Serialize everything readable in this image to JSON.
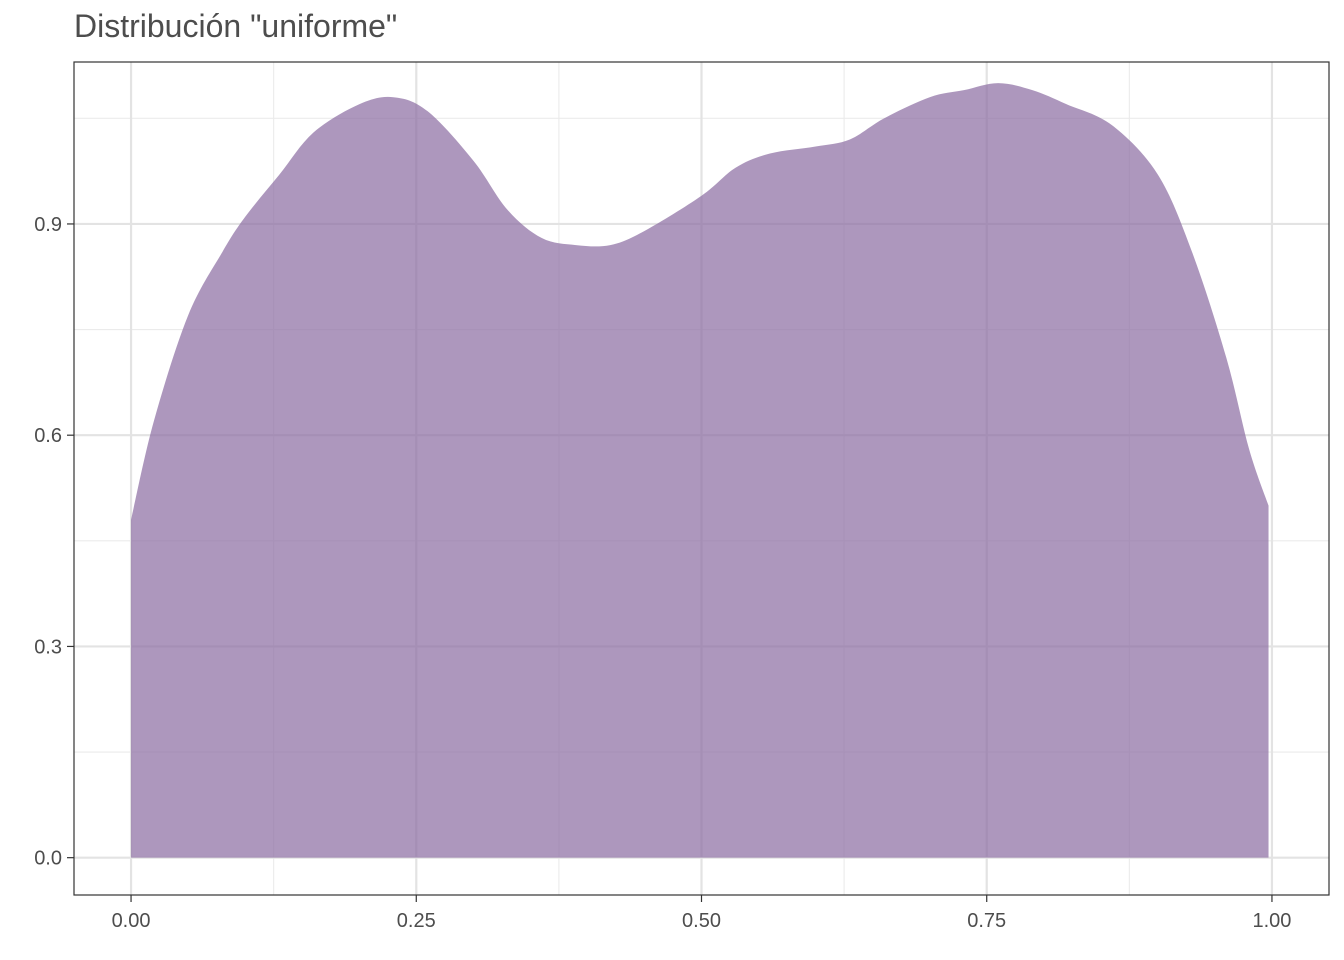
{
  "chart_data": {
    "type": "area",
    "title": "Distribución \"uniforme\"",
    "xlabel": "",
    "ylabel": "",
    "xlim": [
      -0.05,
      1.05
    ],
    "ylim": [
      -0.053,
      1.13
    ],
    "grid": true,
    "x_ticks": [
      0.0,
      0.25,
      0.5,
      0.75,
      1.0
    ],
    "x_tick_labels": [
      "0.00",
      "0.25",
      "0.50",
      "0.75",
      "1.00"
    ],
    "y_ticks": [
      0.0,
      0.3,
      0.6,
      0.9
    ],
    "y_tick_labels": [
      "0.0",
      "0.3",
      "0.6",
      "0.9"
    ],
    "fill_color": "#8E6FA3",
    "fill_opacity": 0.72,
    "series": [
      {
        "x": [
          0.0,
          0.02,
          0.05,
          0.08,
          0.1,
          0.13,
          0.16,
          0.2,
          0.23,
          0.26,
          0.3,
          0.33,
          0.36,
          0.39,
          0.42,
          0.45,
          0.5,
          0.53,
          0.56,
          0.6,
          0.63,
          0.66,
          0.7,
          0.73,
          0.76,
          0.79,
          0.82,
          0.86,
          0.9,
          0.93,
          0.96,
          0.98,
          0.997
        ],
        "y": [
          0.48,
          0.62,
          0.77,
          0.86,
          0.91,
          0.97,
          1.03,
          1.07,
          1.08,
          1.06,
          0.99,
          0.92,
          0.88,
          0.87,
          0.87,
          0.89,
          0.94,
          0.98,
          1.0,
          1.01,
          1.02,
          1.05,
          1.08,
          1.09,
          1.1,
          1.09,
          1.07,
          1.04,
          0.97,
          0.86,
          0.71,
          0.58,
          0.5
        ]
      }
    ]
  }
}
